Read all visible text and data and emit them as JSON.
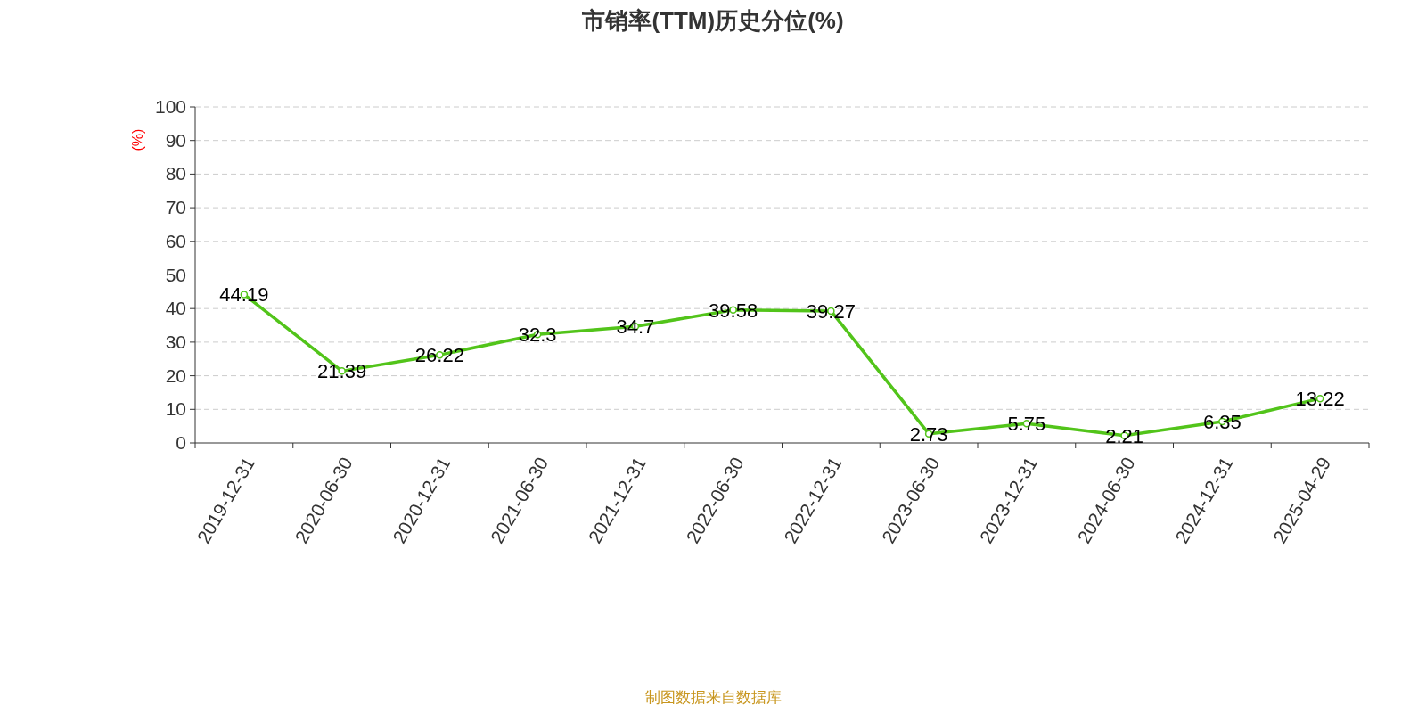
{
  "chart_data": {
    "type": "line",
    "title": "市销率(TTM)历史分位(%)",
    "ylabel": "(%)",
    "categories": [
      "2019-12-31",
      "2020-06-30",
      "2020-12-31",
      "2021-06-30",
      "2021-12-31",
      "2022-06-30",
      "2022-12-31",
      "2023-06-30",
      "2023-12-31",
      "2024-06-30",
      "2024-12-31",
      "2025-04-29"
    ],
    "series": [
      {
        "color": "#52c41a",
        "values": [
          44.19,
          21.39,
          26.22,
          32.3,
          34.7,
          39.58,
          39.27,
          2.73,
          5.75,
          2.21,
          6.35,
          13.22
        ]
      }
    ],
    "ylim": [
      0,
      100
    ],
    "yticks": [
      0,
      10,
      20,
      30,
      40,
      50,
      60,
      70,
      80,
      90,
      100
    ],
    "grid": "y",
    "marker": "circle",
    "line_style": "solid",
    "data_labels": true,
    "annotations": [
      "制图数据来自数据库"
    ]
  }
}
